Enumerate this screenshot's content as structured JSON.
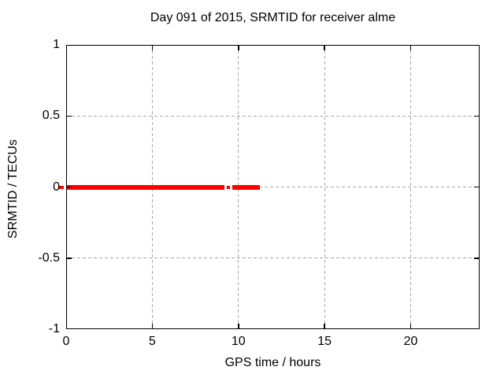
{
  "window": {
    "background": "#ffffff"
  },
  "chart_data": {
    "type": "line",
    "title": "Day 091 of 2015, SRMTID for receiver alme",
    "xlabel": "GPS time / hours",
    "ylabel": "SRMTID / TECUs",
    "xlim": [
      0,
      24
    ],
    "ylim": [
      -1,
      1
    ],
    "xticks": [
      {
        "value": 0,
        "label": "0"
      },
      {
        "value": 5,
        "label": "5"
      },
      {
        "value": 10,
        "label": "10"
      },
      {
        "value": 15,
        "label": "15"
      },
      {
        "value": 20,
        "label": "20"
      }
    ],
    "yticks": [
      {
        "value": -1,
        "label": "-1"
      },
      {
        "value": -0.5,
        "label": "-0.5"
      },
      {
        "value": 0,
        "label": "0"
      },
      {
        "value": 0.5,
        "label": "0.5"
      },
      {
        "value": 1,
        "label": "1"
      }
    ],
    "grid": {
      "show": true,
      "x_lines": [
        5,
        10,
        15,
        20
      ],
      "y_lines": [
        -0.5,
        0,
        0.5
      ],
      "color": "#a8a8a8"
    },
    "axis_color": "#000000",
    "legend": "none",
    "series": [
      {
        "name": "SRMTID",
        "color": "#ff0000",
        "y_value": 0,
        "segments_hours": [
          {
            "from": -0.46,
            "to": -0.14,
            "linewidth": 4
          },
          {
            "from": 0,
            "to": 9.19,
            "linewidth": 6
          },
          {
            "from": 9.33,
            "to": 9.51,
            "linewidth": 4
          },
          {
            "from": 9.64,
            "to": 11.25,
            "linewidth": 6
          }
        ]
      }
    ]
  }
}
